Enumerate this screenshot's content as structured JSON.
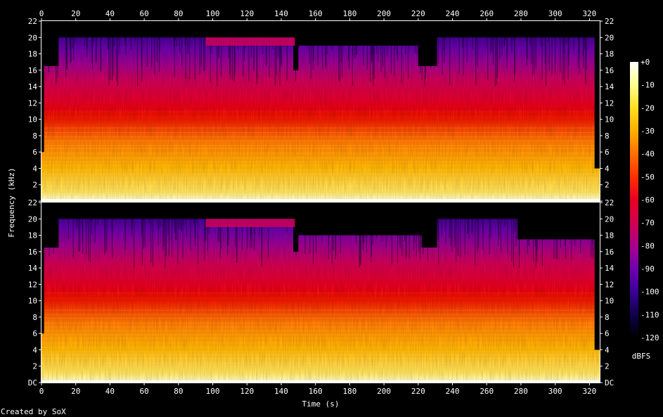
{
  "chart_data": {
    "type": "heatmap",
    "subtype": "spectrogram",
    "xlabel": "Time (s)",
    "ylabel": "Frequency (kHz)",
    "credit": "Created by SoX",
    "xlim": [
      0,
      326
    ],
    "ylim": [
      0,
      22
    ],
    "x_ticks": [
      0,
      20,
      40,
      60,
      80,
      100,
      120,
      140,
      160,
      180,
      200,
      220,
      240,
      260,
      280,
      300,
      320
    ],
    "y_ticks": [
      {
        "value": 0,
        "label": "DC"
      },
      {
        "value": 2,
        "label": "2"
      },
      {
        "value": 4,
        "label": "4"
      },
      {
        "value": 6,
        "label": "6"
      },
      {
        "value": 8,
        "label": "8"
      },
      {
        "value": 10,
        "label": "10"
      },
      {
        "value": 12,
        "label": "12"
      },
      {
        "value": 14,
        "label": "14"
      },
      {
        "value": 16,
        "label": "16"
      },
      {
        "value": 18,
        "label": "18"
      },
      {
        "value": 20,
        "label": "20"
      },
      {
        "value": 22,
        "label": "22"
      }
    ],
    "channels": [
      {
        "cutoff_khz": [
          {
            "t_start": 0,
            "t_end": 1.5,
            "khz": 6
          },
          {
            "t_start": 1.5,
            "t_end": 10,
            "khz": 16.5
          },
          {
            "t_start": 10,
            "t_end": 147,
            "khz": 20
          },
          {
            "t_start": 147,
            "t_end": 150,
            "khz": 16
          },
          {
            "t_start": 150,
            "t_end": 220,
            "khz": 19
          },
          {
            "t_start": 220,
            "t_end": 231,
            "khz": 16.5
          },
          {
            "t_start": 231,
            "t_end": 278,
            "khz": 20
          },
          {
            "t_start": 278,
            "t_end": 323,
            "khz": 20
          },
          {
            "t_start": 323,
            "t_end": 326,
            "khz": 4
          }
        ],
        "features": [
          {
            "kind": "tone_band",
            "t_start": 96,
            "t_end": 148,
            "khz_low": 19,
            "khz_high": 20
          }
        ]
      },
      {
        "cutoff_khz": [
          {
            "t_start": 0,
            "t_end": 1.5,
            "khz": 6
          },
          {
            "t_start": 1.5,
            "t_end": 10,
            "khz": 16.5
          },
          {
            "t_start": 10,
            "t_end": 147,
            "khz": 20
          },
          {
            "t_start": 147,
            "t_end": 150,
            "khz": 16
          },
          {
            "t_start": 150,
            "t_end": 222,
            "khz": 18
          },
          {
            "t_start": 222,
            "t_end": 231,
            "khz": 16.5
          },
          {
            "t_start": 231,
            "t_end": 278,
            "khz": 20
          },
          {
            "t_start": 278,
            "t_end": 323,
            "khz": 17.5
          },
          {
            "t_start": 323,
            "t_end": 326,
            "khz": 4
          }
        ],
        "features": [
          {
            "kind": "tone_band",
            "t_start": 96,
            "t_end": 148,
            "khz_low": 19,
            "khz_high": 20
          }
        ]
      }
    ],
    "colorbar": {
      "label": "dBFS",
      "range": [
        -120,
        0
      ],
      "tick_labels": [
        "+0",
        "-10",
        "-20",
        "-30",
        "-40",
        "-50",
        "-60",
        "-70",
        "-80",
        "-90",
        "-100",
        "-110",
        "-120"
      ],
      "colors": [
        "#ffffff",
        "#ffff90",
        "#ffe020",
        "#ffb000",
        "#ff7000",
        "#ff3000",
        "#e80020",
        "#d00050",
        "#a8008c",
        "#7000b0",
        "#3a0096",
        "#10004a",
        "#000000"
      ]
    },
    "legend_position": "right"
  }
}
